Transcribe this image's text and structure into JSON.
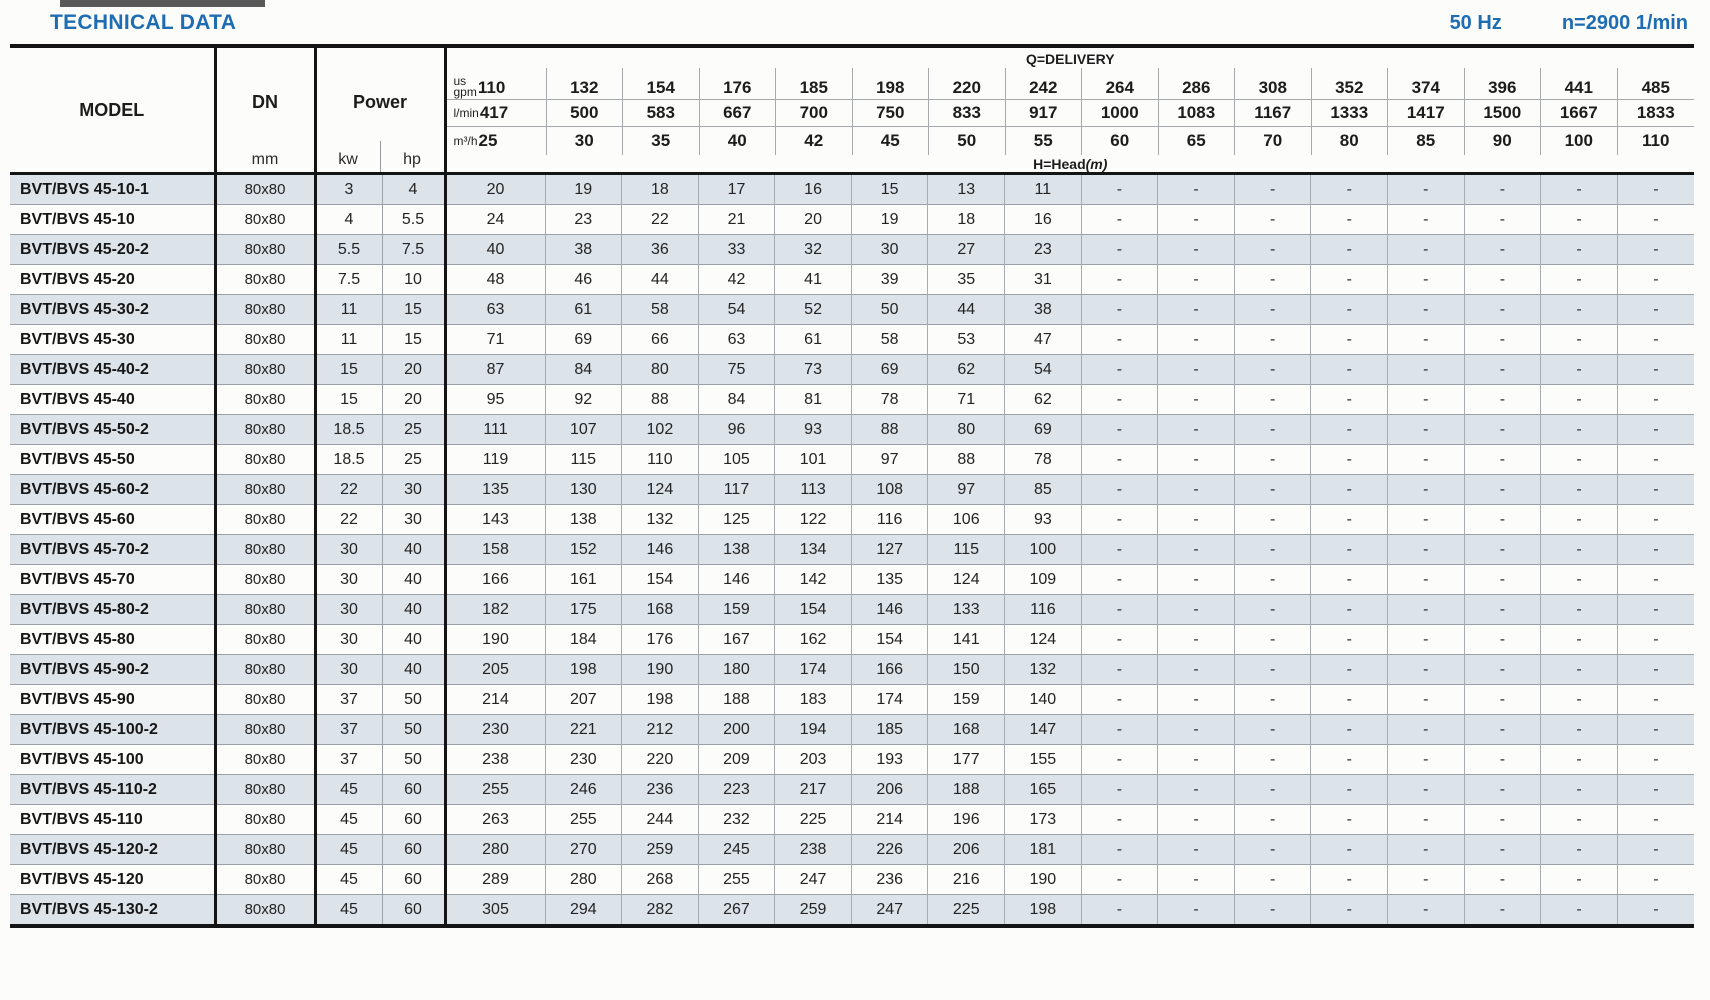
{
  "page": {
    "title": "TECHNICAL DATA",
    "frequency": "50 Hz",
    "speed": "n=2900 1/min"
  },
  "colors": {
    "accent_blue": "#1e6cb2",
    "row_shade": "#dce3e9",
    "border_dark": "#141414"
  },
  "table": {
    "model_header": "MODEL",
    "dn_header": "DN",
    "dn_unit": "mm",
    "power_header": "Power",
    "power_units": [
      "kw",
      "hp"
    ],
    "delivery_label": "Q=DELIVERY",
    "head_label": "H=Head",
    "head_unit": "(m)",
    "unit_rows": [
      {
        "label_lines": [
          "us",
          "gpm"
        ],
        "values": [
          "110",
          "132",
          "154",
          "176",
          "185",
          "198",
          "220",
          "242",
          "264",
          "286",
          "308",
          "352",
          "374",
          "396",
          "441",
          "485"
        ]
      },
      {
        "label_lines": [
          "l/min"
        ],
        "values": [
          "417",
          "500",
          "583",
          "667",
          "700",
          "750",
          "833",
          "917",
          "1000",
          "1083",
          "1167",
          "1333",
          "1417",
          "1500",
          "1667",
          "1833"
        ]
      },
      {
        "label_lines": [
          "m³/h"
        ],
        "values": [
          "25",
          "30",
          "35",
          "40",
          "42",
          "45",
          "50",
          "55",
          "60",
          "65",
          "70",
          "80",
          "85",
          "90",
          "100",
          "110"
        ]
      }
    ],
    "rows": [
      {
        "model": "BVT/BVS 45-10-1",
        "dn": "80x80",
        "kw": "3",
        "hp": "4",
        "head": [
          "20",
          "19",
          "18",
          "17",
          "16",
          "15",
          "13",
          "11",
          "-",
          "-",
          "-",
          "-",
          "-",
          "-",
          "-",
          "-"
        ]
      },
      {
        "model": "BVT/BVS 45-10",
        "dn": "80x80",
        "kw": "4",
        "hp": "5.5",
        "head": [
          "24",
          "23",
          "22",
          "21",
          "20",
          "19",
          "18",
          "16",
          "-",
          "-",
          "-",
          "-",
          "-",
          "-",
          "-",
          "-"
        ]
      },
      {
        "model": "BVT/BVS 45-20-2",
        "dn": "80x80",
        "kw": "5.5",
        "hp": "7.5",
        "head": [
          "40",
          "38",
          "36",
          "33",
          "32",
          "30",
          "27",
          "23",
          "-",
          "-",
          "-",
          "-",
          "-",
          "-",
          "-",
          "-"
        ]
      },
      {
        "model": "BVT/BVS 45-20",
        "dn": "80x80",
        "kw": "7.5",
        "hp": "10",
        "head": [
          "48",
          "46",
          "44",
          "42",
          "41",
          "39",
          "35",
          "31",
          "-",
          "-",
          "-",
          "-",
          "-",
          "-",
          "-",
          "-"
        ]
      },
      {
        "model": "BVT/BVS 45-30-2",
        "dn": "80x80",
        "kw": "11",
        "hp": "15",
        "head": [
          "63",
          "61",
          "58",
          "54",
          "52",
          "50",
          "44",
          "38",
          "-",
          "-",
          "-",
          "-",
          "-",
          "-",
          "-",
          "-"
        ]
      },
      {
        "model": "BVT/BVS 45-30",
        "dn": "80x80",
        "kw": "11",
        "hp": "15",
        "head": [
          "71",
          "69",
          "66",
          "63",
          "61",
          "58",
          "53",
          "47",
          "-",
          "-",
          "-",
          "-",
          "-",
          "-",
          "-",
          "-"
        ]
      },
      {
        "model": "BVT/BVS 45-40-2",
        "dn": "80x80",
        "kw": "15",
        "hp": "20",
        "head": [
          "87",
          "84",
          "80",
          "75",
          "73",
          "69",
          "62",
          "54",
          "-",
          "-",
          "-",
          "-",
          "-",
          "-",
          "-",
          "-"
        ]
      },
      {
        "model": "BVT/BVS 45-40",
        "dn": "80x80",
        "kw": "15",
        "hp": "20",
        "head": [
          "95",
          "92",
          "88",
          "84",
          "81",
          "78",
          "71",
          "62",
          "-",
          "-",
          "-",
          "-",
          "-",
          "-",
          "-",
          "-"
        ]
      },
      {
        "model": "BVT/BVS 45-50-2",
        "dn": "80x80",
        "kw": "18.5",
        "hp": "25",
        "head": [
          "111",
          "107",
          "102",
          "96",
          "93",
          "88",
          "80",
          "69",
          "-",
          "-",
          "-",
          "-",
          "-",
          "-",
          "-",
          "-"
        ]
      },
      {
        "model": "BVT/BVS 45-50",
        "dn": "80x80",
        "kw": "18.5",
        "hp": "25",
        "head": [
          "119",
          "115",
          "110",
          "105",
          "101",
          "97",
          "88",
          "78",
          "-",
          "-",
          "-",
          "-",
          "-",
          "-",
          "-",
          "-"
        ]
      },
      {
        "model": "BVT/BVS 45-60-2",
        "dn": "80x80",
        "kw": "22",
        "hp": "30",
        "head": [
          "135",
          "130",
          "124",
          "117",
          "113",
          "108",
          "97",
          "85",
          "-",
          "-",
          "-",
          "-",
          "-",
          "-",
          "-",
          "-"
        ]
      },
      {
        "model": "BVT/BVS 45-60",
        "dn": "80x80",
        "kw": "22",
        "hp": "30",
        "head": [
          "143",
          "138",
          "132",
          "125",
          "122",
          "116",
          "106",
          "93",
          "-",
          "-",
          "-",
          "-",
          "-",
          "-",
          "-",
          "-"
        ]
      },
      {
        "model": "BVT/BVS 45-70-2",
        "dn": "80x80",
        "kw": "30",
        "hp": "40",
        "head": [
          "158",
          "152",
          "146",
          "138",
          "134",
          "127",
          "115",
          "100",
          "-",
          "-",
          "-",
          "-",
          "-",
          "-",
          "-",
          "-"
        ]
      },
      {
        "model": "BVT/BVS 45-70",
        "dn": "80x80",
        "kw": "30",
        "hp": "40",
        "head": [
          "166",
          "161",
          "154",
          "146",
          "142",
          "135",
          "124",
          "109",
          "-",
          "-",
          "-",
          "-",
          "-",
          "-",
          "-",
          "-"
        ]
      },
      {
        "model": "BVT/BVS 45-80-2",
        "dn": "80x80",
        "kw": "30",
        "hp": "40",
        "head": [
          "182",
          "175",
          "168",
          "159",
          "154",
          "146",
          "133",
          "116",
          "-",
          "-",
          "-",
          "-",
          "-",
          "-",
          "-",
          "-"
        ]
      },
      {
        "model": "BVT/BVS 45-80",
        "dn": "80x80",
        "kw": "30",
        "hp": "40",
        "head": [
          "190",
          "184",
          "176",
          "167",
          "162",
          "154",
          "141",
          "124",
          "-",
          "-",
          "-",
          "-",
          "-",
          "-",
          "-",
          "-"
        ]
      },
      {
        "model": "BVT/BVS 45-90-2",
        "dn": "80x80",
        "kw": "30",
        "hp": "40",
        "head": [
          "205",
          "198",
          "190",
          "180",
          "174",
          "166",
          "150",
          "132",
          "-",
          "-",
          "-",
          "-",
          "-",
          "-",
          "-",
          "-"
        ]
      },
      {
        "model": "BVT/BVS 45-90",
        "dn": "80x80",
        "kw": "37",
        "hp": "50",
        "head": [
          "214",
          "207",
          "198",
          "188",
          "183",
          "174",
          "159",
          "140",
          "-",
          "-",
          "-",
          "-",
          "-",
          "-",
          "-",
          "-"
        ]
      },
      {
        "model": "BVT/BVS 45-100-2",
        "dn": "80x80",
        "kw": "37",
        "hp": "50",
        "head": [
          "230",
          "221",
          "212",
          "200",
          "194",
          "185",
          "168",
          "147",
          "-",
          "-",
          "-",
          "-",
          "-",
          "-",
          "-",
          "-"
        ]
      },
      {
        "model": "BVT/BVS 45-100",
        "dn": "80x80",
        "kw": "37",
        "hp": "50",
        "head": [
          "238",
          "230",
          "220",
          "209",
          "203",
          "193",
          "177",
          "155",
          "-",
          "-",
          "-",
          "-",
          "-",
          "-",
          "-",
          "-"
        ]
      },
      {
        "model": "BVT/BVS 45-110-2",
        "dn": "80x80",
        "kw": "45",
        "hp": "60",
        "head": [
          "255",
          "246",
          "236",
          "223",
          "217",
          "206",
          "188",
          "165",
          "-",
          "-",
          "-",
          "-",
          "-",
          "-",
          "-",
          "-"
        ]
      },
      {
        "model": "BVT/BVS 45-110",
        "dn": "80x80",
        "kw": "45",
        "hp": "60",
        "head": [
          "263",
          "255",
          "244",
          "232",
          "225",
          "214",
          "196",
          "173",
          "-",
          "-",
          "-",
          "-",
          "-",
          "-",
          "-",
          "-"
        ]
      },
      {
        "model": "BVT/BVS 45-120-2",
        "dn": "80x80",
        "kw": "45",
        "hp": "60",
        "head": [
          "280",
          "270",
          "259",
          "245",
          "238",
          "226",
          "206",
          "181",
          "-",
          "-",
          "-",
          "-",
          "-",
          "-",
          "-",
          "-"
        ]
      },
      {
        "model": "BVT/BVS 45-120",
        "dn": "80x80",
        "kw": "45",
        "hp": "60",
        "head": [
          "289",
          "280",
          "268",
          "255",
          "247",
          "236",
          "216",
          "190",
          "-",
          "-",
          "-",
          "-",
          "-",
          "-",
          "-",
          "-"
        ]
      },
      {
        "model": "BVT/BVS 45-130-2",
        "dn": "80x80",
        "kw": "45",
        "hp": "60",
        "head": [
          "305",
          "294",
          "282",
          "267",
          "259",
          "247",
          "225",
          "198",
          "-",
          "-",
          "-",
          "-",
          "-",
          "-",
          "-",
          "-"
        ]
      }
    ]
  }
}
